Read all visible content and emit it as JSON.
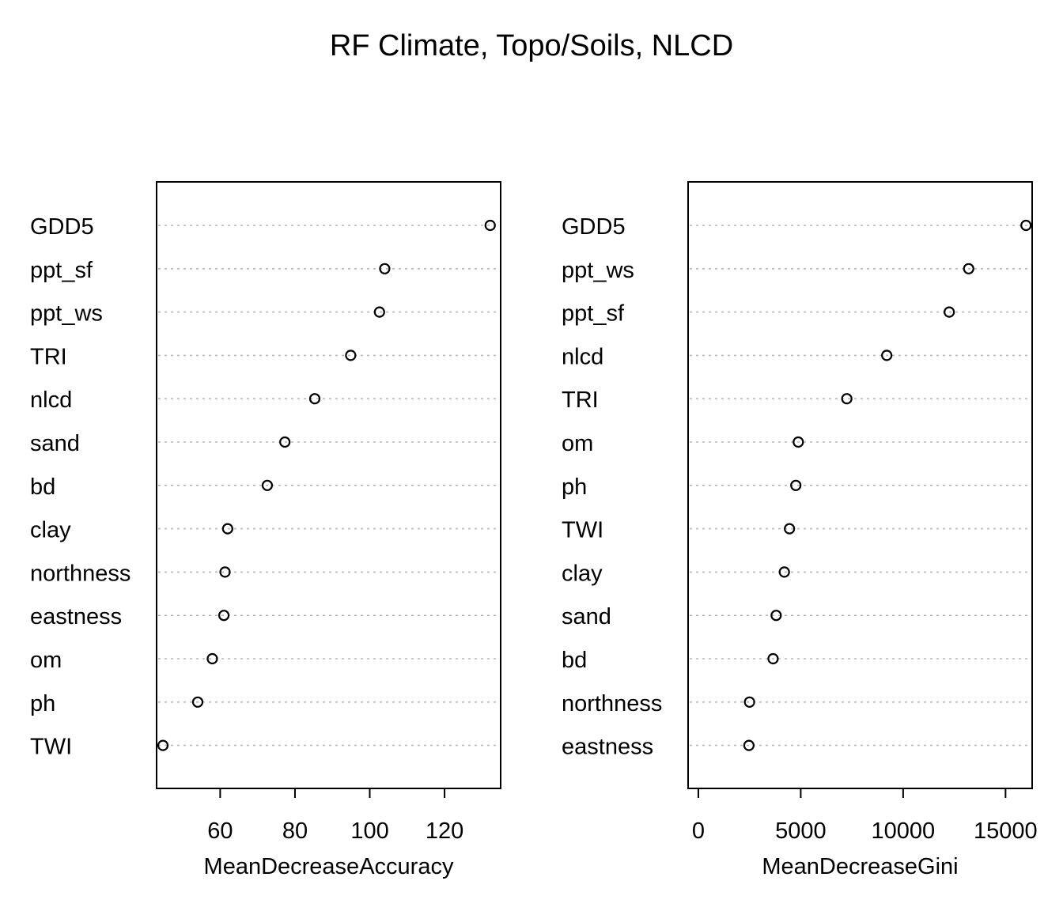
{
  "title": "RF Climate, Topo/Soils, NLCD",
  "chart_data": [
    {
      "type": "scatter",
      "style": "dotchart",
      "xlabel": "MeanDecreaseAccuracy",
      "ylabel": "",
      "xlim": [
        43,
        135
      ],
      "xticks": [
        60,
        80,
        100,
        120
      ],
      "grid": "dotted horizontal",
      "points": [
        {
          "label": "GDD5",
          "value": 132.2
        },
        {
          "label": "ppt_sf",
          "value": 104.0
        },
        {
          "label": "ppt_ws",
          "value": 102.6
        },
        {
          "label": "TRI",
          "value": 94.9
        },
        {
          "label": "nlcd",
          "value": 85.3
        },
        {
          "label": "sand",
          "value": 77.3
        },
        {
          "label": "bd",
          "value": 72.6
        },
        {
          "label": "clay",
          "value": 62.0
        },
        {
          "label": "northness",
          "value": 61.3
        },
        {
          "label": "eastness",
          "value": 61.0
        },
        {
          "label": "om",
          "value": 57.9
        },
        {
          "label": "ph",
          "value": 54.0
        },
        {
          "label": "TWI",
          "value": 44.7
        }
      ]
    },
    {
      "type": "scatter",
      "style": "dotchart",
      "xlabel": "MeanDecreaseGini",
      "ylabel": "",
      "xlim": [
        -500,
        16300
      ],
      "xticks": [
        0,
        5000,
        10000,
        15000
      ],
      "grid": "dotted horizontal",
      "points": [
        {
          "label": "GDD5",
          "value": 16000
        },
        {
          "label": "ppt_ws",
          "value": 13200
        },
        {
          "label": "ppt_sf",
          "value": 12250
        },
        {
          "label": "nlcd",
          "value": 9200
        },
        {
          "label": "TRI",
          "value": 7250
        },
        {
          "label": "om",
          "value": 4880
        },
        {
          "label": "ph",
          "value": 4760
        },
        {
          "label": "TWI",
          "value": 4450
        },
        {
          "label": "clay",
          "value": 4200
        },
        {
          "label": "sand",
          "value": 3800
        },
        {
          "label": "bd",
          "value": 3650
        },
        {
          "label": "northness",
          "value": 2500
        },
        {
          "label": "eastness",
          "value": 2470
        }
      ]
    }
  ]
}
